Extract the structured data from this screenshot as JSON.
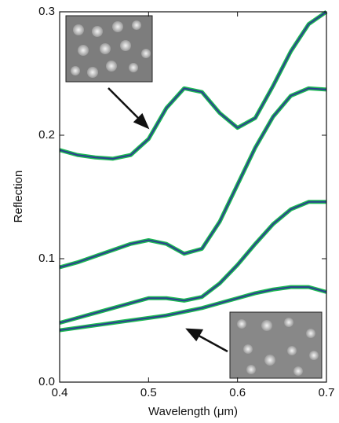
{
  "chart_data": {
    "type": "line",
    "xlabel": "Wavelength (μm)",
    "ylabel": "Reflection",
    "x": [
      0.4,
      0.42,
      0.44,
      0.46,
      0.48,
      0.5,
      0.52,
      0.54,
      0.56,
      0.58,
      0.6,
      0.62,
      0.64,
      0.66,
      0.68,
      0.7
    ],
    "measured_color": "#1db954",
    "series": [
      {
        "color": "#2b3f8f",
        "values": [
          0.188,
          0.184,
          0.182,
          0.181,
          0.184,
          0.197,
          0.222,
          0.238,
          0.235,
          0.218,
          0.206,
          0.214,
          0.24,
          0.268,
          0.29,
          0.3
        ]
      },
      {
        "color": "#2b3f8f",
        "values": [
          0.093,
          0.097,
          0.102,
          0.107,
          0.112,
          0.115,
          0.112,
          0.104,
          0.108,
          0.13,
          0.16,
          0.19,
          0.215,
          0.232,
          0.238,
          0.237
        ]
      },
      {
        "color": "#2b3f8f",
        "values": [
          0.048,
          0.052,
          0.056,
          0.06,
          0.064,
          0.068,
          0.068,
          0.066,
          0.069,
          0.08,
          0.095,
          0.112,
          0.128,
          0.14,
          0.146,
          0.146
        ]
      },
      {
        "color": "#2b3f8f",
        "values": [
          0.042,
          0.044,
          0.046,
          0.048,
          0.05,
          0.052,
          0.054,
          0.057,
          0.06,
          0.064,
          0.068,
          0.072,
          0.075,
          0.077,
          0.077,
          0.073
        ]
      }
    ],
    "xlim": [
      0.4,
      0.7
    ],
    "xticks": [
      0.4,
      0.5,
      0.6,
      0.7
    ],
    "ylim": [
      0,
      0.3
    ],
    "yticks": [
      {
        "value": 0,
        "label": "0.0"
      },
      0.1,
      0.2,
      0.3
    ]
  }
}
